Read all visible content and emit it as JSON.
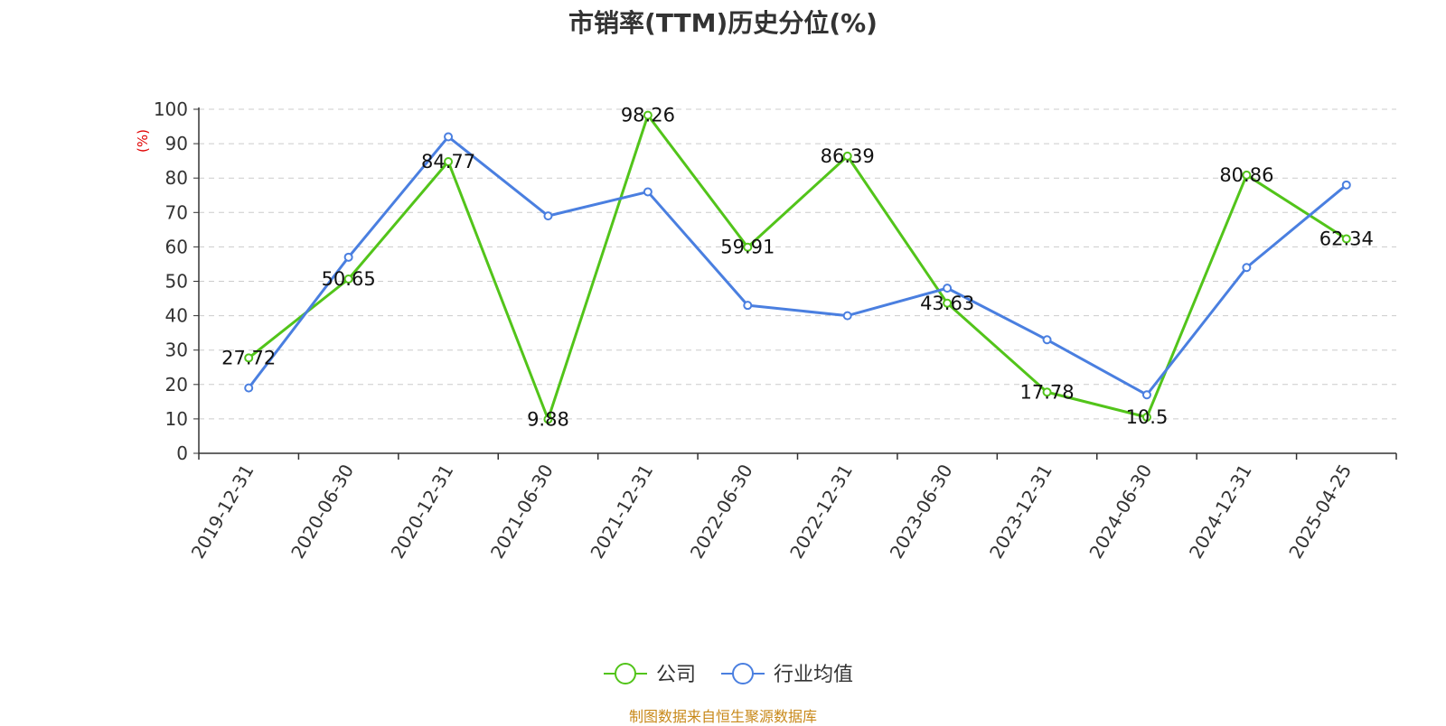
{
  "chart_data": {
    "type": "line",
    "title": "市销率(TTM)历史分位(%)",
    "ylabel": "(%)",
    "xlabel": "",
    "ylim": [
      0,
      100
    ],
    "yticks": [
      0,
      10,
      20,
      30,
      40,
      50,
      60,
      70,
      80,
      90,
      100
    ],
    "categories": [
      "2019-12-31",
      "2020-06-30",
      "2020-12-31",
      "2021-06-30",
      "2021-12-31",
      "2022-06-30",
      "2022-12-31",
      "2023-06-30",
      "2023-12-31",
      "2024-06-30",
      "2024-12-31",
      "2025-04-25"
    ],
    "grid": true,
    "legend_position": "bottom",
    "series": [
      {
        "name": "公司",
        "color": "#52c41a",
        "values": [
          27.72,
          50.65,
          84.77,
          9.88,
          98.26,
          59.91,
          86.39,
          43.63,
          17.78,
          10.5,
          80.86,
          62.34
        ],
        "labels": [
          "27.72",
          "50.65",
          "84.77",
          "9.88",
          "98.26",
          "59.91",
          "86.39",
          "43.63",
          "17.78",
          "10.5",
          "80.86",
          "62.34"
        ]
      },
      {
        "name": "行业均值",
        "color": "#4a7fe0",
        "values": [
          19,
          57,
          92,
          69,
          76,
          43,
          40,
          48,
          33,
          17,
          54,
          78
        ]
      }
    ]
  },
  "footer": "制图数据来自恒生聚源数据库"
}
